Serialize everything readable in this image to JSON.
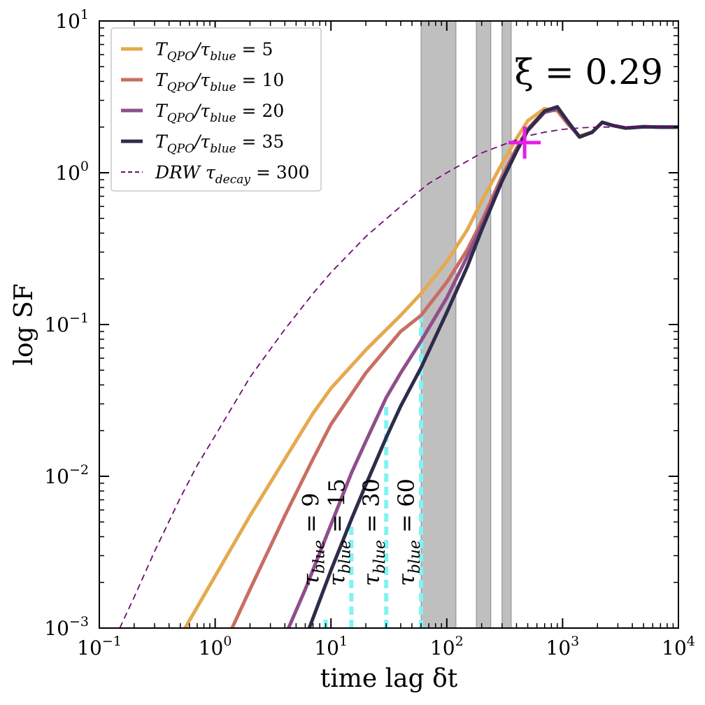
{
  "chart_data": {
    "type": "line",
    "xscale": "log",
    "yscale": "log",
    "xlim": [
      0.1,
      10000
    ],
    "ylim": [
      0.001,
      10
    ],
    "xlabel": "time lag δt",
    "ylabel": "log SF",
    "x_ticks": [
      {
        "value": 0.1,
        "base": "10",
        "exp": "−1"
      },
      {
        "value": 1,
        "base": "10",
        "exp": "0"
      },
      {
        "value": 10,
        "base": "10",
        "exp": "1"
      },
      {
        "value": 100,
        "base": "10",
        "exp": "2"
      },
      {
        "value": 1000,
        "base": "10",
        "exp": "3"
      },
      {
        "value": 10000,
        "base": "10",
        "exp": "4"
      }
    ],
    "y_ticks": [
      {
        "value": 0.001,
        "base": "10",
        "exp": "−3"
      },
      {
        "value": 0.01,
        "base": "10",
        "exp": "−2"
      },
      {
        "value": 0.1,
        "base": "10",
        "exp": "−1"
      },
      {
        "value": 1,
        "base": "10",
        "exp": "0"
      },
      {
        "value": 10,
        "base": "10",
        "exp": "1"
      }
    ],
    "annotation": {
      "text": "ξ = 0.29",
      "x": 3800,
      "y": 4.0
    },
    "marker": {
      "x": 470,
      "y": 1.58,
      "color": "#e81cea"
    },
    "shaded_bands": [
      [
        60,
        120
      ],
      [
        180,
        240
      ],
      [
        300,
        360
      ]
    ],
    "shaded_color": "#bfbfbf",
    "tau_markers": [
      {
        "tau": 9,
        "label_main": "τ",
        "label_sub": "blue",
        "label_eq": "= 9",
        "top": 0.0012
      },
      {
        "tau": 15,
        "label_main": "τ",
        "label_sub": "blue",
        "label_eq": "= 15",
        "top": 0.0048
      },
      {
        "tau": 30,
        "label_main": "τ",
        "label_sub": "blue",
        "label_eq": "= 30",
        "top": 0.03
      },
      {
        "tau": 60,
        "label_main": "τ",
        "label_sub": "blue",
        "label_eq": "= 60",
        "top": 0.12
      }
    ],
    "tau_color": "#7ff4f4",
    "legend_placement": "top-left",
    "series": [
      {
        "name": "T_QPO/τ_blue = 5",
        "legend_main": "T",
        "legend_sub": "QPO",
        "legend_mid": "/τ",
        "legend_sub2": "blue",
        "legend_eq": "= 5",
        "color": "#e6a94e",
        "style": "solid",
        "x": [
          0.55,
          1,
          2,
          4,
          7,
          10,
          20,
          40,
          60,
          100,
          150,
          200,
          300,
          400,
          500,
          700,
          900,
          1100,
          1400,
          1800,
          2200,
          2700,
          3500,
          5000,
          7000,
          10000
        ],
        "y": [
          0.001,
          0.0022,
          0.0055,
          0.013,
          0.026,
          0.038,
          0.068,
          0.115,
          0.16,
          0.26,
          0.42,
          0.65,
          1.15,
          1.68,
          2.2,
          2.65,
          2.55,
          2.1,
          1.75,
          1.85,
          2.15,
          2.05,
          1.97,
          2.01,
          2.0,
          2.0
        ]
      },
      {
        "name": "T_QPO/τ_blue = 10",
        "legend_main": "T",
        "legend_sub": "QPO",
        "legend_mid": "/τ",
        "legend_sub2": "blue",
        "legend_eq": "= 10",
        "color": "#c96e64",
        "style": "solid",
        "x": [
          1.4,
          2,
          4,
          7,
          10,
          20,
          40,
          60,
          100,
          150,
          200,
          300,
          400,
          500,
          700,
          900,
          1100,
          1400,
          1800,
          2200,
          2700,
          3500,
          5000,
          7000,
          10000
        ],
        "y": [
          0.001,
          0.0018,
          0.0055,
          0.013,
          0.022,
          0.048,
          0.09,
          0.115,
          0.19,
          0.31,
          0.48,
          0.95,
          1.45,
          1.95,
          2.55,
          2.65,
          2.15,
          1.72,
          1.85,
          2.15,
          2.05,
          1.97,
          2.01,
          2.0,
          2.0
        ]
      },
      {
        "name": "T_QPO/τ_blue = 20",
        "legend_main": "T",
        "legend_sub": "QPO",
        "legend_mid": "/τ",
        "legend_sub2": "blue",
        "legend_eq": "= 20",
        "color": "#8f4e8c",
        "style": "solid",
        "x": [
          4.3,
          6,
          10,
          15,
          20,
          30,
          40,
          60,
          100,
          150,
          200,
          300,
          400,
          500,
          700,
          900,
          1100,
          1400,
          1800,
          2200,
          2700,
          3500,
          5000,
          7000,
          10000
        ],
        "y": [
          0.001,
          0.0018,
          0.0048,
          0.0105,
          0.017,
          0.033,
          0.048,
          0.078,
          0.15,
          0.28,
          0.45,
          0.9,
          1.4,
          1.9,
          2.5,
          2.62,
          2.15,
          1.72,
          1.85,
          2.15,
          2.05,
          1.97,
          2.01,
          2.0,
          2.0
        ]
      },
      {
        "name": "T_QPO/τ_blue = 35",
        "legend_main": "T",
        "legend_sub": "QPO",
        "legend_mid": "/τ",
        "legend_sub2": "blue",
        "legend_eq": "= 35",
        "color": "#2f2b4b",
        "style": "solid",
        "x": [
          6.5,
          10,
          15,
          20,
          30,
          40,
          60,
          100,
          150,
          200,
          300,
          400,
          500,
          700,
          900,
          1100,
          1400,
          1800,
          2200,
          2700,
          3500,
          5000,
          7000,
          10000
        ],
        "y": [
          0.001,
          0.0024,
          0.0052,
          0.0088,
          0.018,
          0.029,
          0.052,
          0.12,
          0.24,
          0.42,
          0.88,
          1.38,
          1.9,
          2.55,
          2.72,
          2.2,
          1.72,
          1.85,
          2.15,
          2.05,
          1.97,
          2.01,
          2.0,
          2.0
        ]
      },
      {
        "name": "DRW τ_decay = 300",
        "legend_main": "DRW τ",
        "legend_sub": "decay",
        "legend_mid": "",
        "legend_sub2": "",
        "legend_eq": "= 300",
        "color": "#6f0a73",
        "style": "dashed",
        "x": [
          0.15,
          0.2,
          0.3,
          0.5,
          0.7,
          1,
          2,
          4,
          7,
          10,
          20,
          40,
          70,
          100,
          200,
          300,
          500,
          700,
          1000,
          1500,
          2000,
          3000,
          5000,
          10000
        ],
        "y": [
          0.001,
          0.0016,
          0.0032,
          0.0072,
          0.0118,
          0.0185,
          0.045,
          0.093,
          0.16,
          0.22,
          0.38,
          0.6,
          0.85,
          1.0,
          1.35,
          1.52,
          1.75,
          1.85,
          1.93,
          1.98,
          2.0,
          2.0,
          2.0,
          2.0
        ]
      }
    ]
  }
}
